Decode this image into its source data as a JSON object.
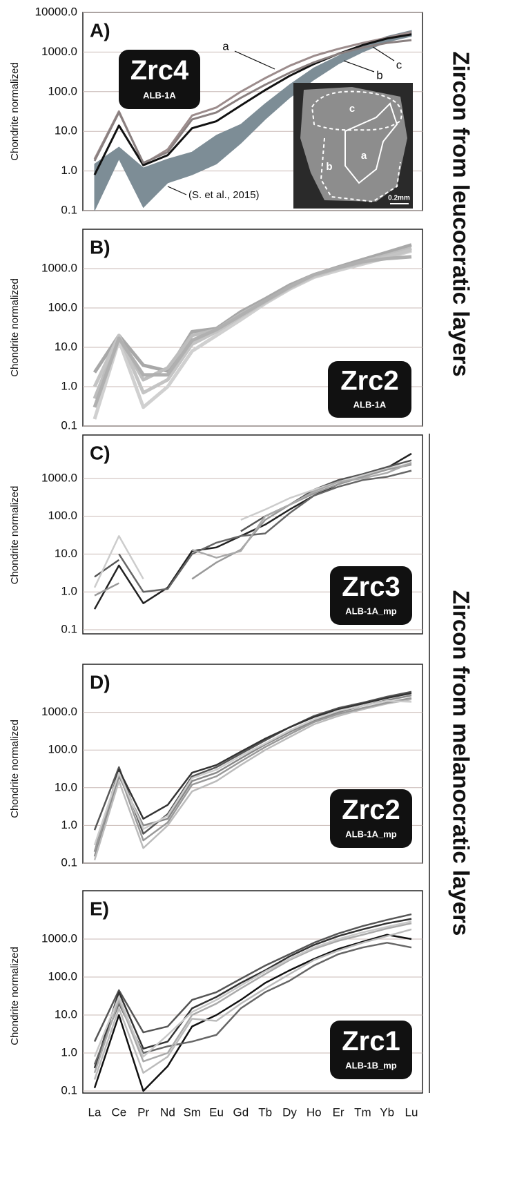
{
  "side_labels": [
    "Zircon from leucocratic layers",
    "Zircon from melanocratic layers"
  ],
  "chart_data": [
    {
      "type": "line",
      "panel_label": "A)",
      "y_label": "Chondrite normalized",
      "legend_title": "Zrc4",
      "legend_subtitle": "ALB-1A",
      "log_scale": true,
      "grid": true,
      "ylim": [
        0.1,
        10000
      ],
      "yticks": [
        0.1,
        {
          "value": 1,
          "label": "1.0"
        },
        {
          "value": 10,
          "label": "10.0"
        },
        {
          "value": 100,
          "label": "100.0"
        },
        {
          "value": 1000,
          "label": "1000.0"
        },
        {
          "value": 10000,
          "label": "10000.0"
        }
      ],
      "band": {
        "label": "(S. et al., 2015)",
        "color": "#7d8d96",
        "low": [
          0.1,
          2,
          0.12,
          0.5,
          0.8,
          1.5,
          5,
          20,
          70,
          200,
          500,
          1000,
          1800,
          2500
        ],
        "high": [
          1.5,
          4,
          1.2,
          2,
          3,
          8,
          15,
          50,
          150,
          400,
          800,
          1500,
          2500,
          3500
        ]
      },
      "series": [
        {
          "name": "a",
          "color": "#9c8c8c",
          "values": [
            2,
            32,
            1.5,
            3.5,
            25,
            40,
            100,
            220,
            450,
            800,
            1200,
            1700,
            2300,
            3200
          ]
        },
        {
          "name": "b",
          "color": "#111111",
          "values": [
            0.8,
            14,
            1.4,
            2.5,
            12,
            18,
            45,
            110,
            250,
            500,
            900,
            1500,
            2200,
            2800
          ]
        },
        {
          "name": "c",
          "color": "#8a8080",
          "values": [
            1.8,
            30,
            1.6,
            3,
            20,
            30,
            70,
            150,
            300,
            550,
            900,
            1300,
            1700,
            2000
          ]
        }
      ],
      "inset": {
        "labels": [
          "c",
          "a",
          "b",
          "0.2mm"
        ]
      }
    },
    {
      "type": "line",
      "panel_label": "B)",
      "y_label": "Chondrite normalized",
      "legend_title": "Zrc2",
      "legend_subtitle": "ALB-1A",
      "log_scale": true,
      "grid": true,
      "ylim": [
        0.1,
        10000
      ],
      "yticks": [
        0.1,
        {
          "value": 1,
          "label": "1.0"
        },
        {
          "value": 10,
          "label": "10.0"
        },
        {
          "value": 100,
          "label": "100.0"
        },
        {
          "value": 1000,
          "label": "1000.0"
        }
      ],
      "series": [
        {
          "color": "#a8a8a8",
          "values": [
            2.3,
            20,
            3.5,
            2.5,
            25,
            30,
            80,
            170,
            380,
            700,
            1100,
            1700,
            2600,
            4000
          ]
        },
        {
          "color": "#bdbdbd",
          "values": [
            0.5,
            18,
            1.5,
            3,
            20,
            28,
            70,
            150,
            330,
            650,
            1000,
            1500,
            2200,
            3300
          ]
        },
        {
          "color": "#d0d0d0",
          "values": [
            0.15,
            15,
            0.3,
            1,
            8,
            20,
            50,
            130,
            300,
            600,
            900,
            1300,
            1900,
            2800
          ]
        },
        {
          "color": "#c4c4c4",
          "values": [
            1,
            20,
            0.7,
            1.5,
            12,
            25,
            60,
            140,
            320,
            640,
            1000,
            1400,
            2000,
            3000
          ]
        },
        {
          "color": "#b0b0b0",
          "values": [
            0.3,
            17,
            2,
            2,
            15,
            28,
            65,
            150,
            340,
            700,
            1050,
            1500,
            1800,
            2000
          ]
        }
      ]
    },
    {
      "type": "line",
      "panel_label": "C)",
      "y_label": "Chondrite normalized",
      "legend_title": "Zrc3",
      "legend_subtitle": "ALB-1A_mp",
      "log_scale": true,
      "grid": true,
      "ylim": [
        0.1,
        10000
      ],
      "yticks": [
        0.1,
        {
          "value": 1,
          "label": "1.0"
        },
        {
          "value": 10,
          "label": "10.0"
        },
        {
          "value": 100,
          "label": "100.0"
        },
        {
          "value": 1000,
          "label": "1000.0"
        }
      ],
      "series": [
        {
          "color": "#222222",
          "values": [
            0.35,
            5,
            0.5,
            1.3,
            12,
            15,
            30,
            60,
            150,
            350,
            700,
            1100,
            1900,
            4500
          ]
        },
        {
          "color": "#555555",
          "values": [
            2.5,
            7,
            null,
            null,
            null,
            null,
            40,
            100,
            200,
            500,
            900,
            1300,
            2000,
            3000
          ]
        },
        {
          "color": "#cccccc",
          "values": [
            1.3,
            30,
            2.2,
            null,
            null,
            null,
            80,
            150,
            300,
            500,
            800,
            1200,
            1800,
            2500
          ]
        },
        {
          "color": "#999999",
          "values": [
            0.8,
            1.7,
            null,
            null,
            2.2,
            6,
            13,
            80,
            200,
            400,
            700,
            1100,
            1700,
            2300
          ]
        },
        {
          "color": "#666666",
          "values": [
            null,
            10,
            1,
            1.2,
            10,
            20,
            30,
            35,
            120,
            350,
            600,
            900,
            1100,
            1600
          ]
        },
        {
          "color": "#aaaaaa",
          "values": [
            null,
            null,
            null,
            null,
            13,
            8,
            12,
            100,
            200,
            450,
            800,
            1000,
            1400,
            2600
          ]
        }
      ]
    },
    {
      "type": "line",
      "panel_label": "D)",
      "y_label": "Chondrite normalized",
      "legend_title": "Zrc2",
      "legend_subtitle": "ALB-1A_mp",
      "log_scale": true,
      "grid": true,
      "ylim": [
        0.1,
        10000
      ],
      "yticks": [
        0.1,
        {
          "value": 1,
          "label": "1.0"
        },
        {
          "value": 10,
          "label": "10.0"
        },
        {
          "value": 100,
          "label": "100.0"
        },
        {
          "value": 1000,
          "label": "1000.0"
        }
      ],
      "series": [
        {
          "color": "#555555",
          "values": [
            0.75,
            35,
            0.6,
            2,
            20,
            35,
            80,
            180,
            400,
            800,
            1300,
            1800,
            2600,
            3500
          ]
        },
        {
          "color": "#333333",
          "values": [
            0.2,
            30,
            1.5,
            3.5,
            25,
            40,
            90,
            200,
            400,
            750,
            1200,
            1700,
            2400,
            3200
          ]
        },
        {
          "color": "#888888",
          "values": [
            0.15,
            20,
            1,
            1.5,
            15,
            25,
            60,
            140,
            300,
            600,
            1000,
            1500,
            2100,
            2800
          ]
        },
        {
          "color": "#bbbbbb",
          "values": [
            0.12,
            15,
            0.25,
            1,
            8,
            15,
            40,
            100,
            220,
            480,
            800,
            1200,
            1700,
            2200
          ]
        },
        {
          "color": "#999999",
          "values": [
            0.2,
            25,
            0.4,
            1.2,
            12,
            20,
            50,
            120,
            260,
            550,
            900,
            1300,
            1800,
            2400
          ]
        },
        {
          "color": "#cccccc",
          "values": [
            0.3,
            25,
            0.8,
            1.8,
            18,
            30,
            70,
            150,
            330,
            650,
            1100,
            1500,
            2000,
            1900
          ]
        }
      ]
    },
    {
      "type": "line",
      "panel_label": "E)",
      "y_label": "Chondrite normalized",
      "legend_title": "Zrc1",
      "legend_subtitle": "ALB-1B_mp",
      "log_scale": true,
      "grid": true,
      "ylim": [
        0.1,
        10000
      ],
      "yticks": [
        0.1,
        {
          "value": 1,
          "label": "1.0"
        },
        {
          "value": 10,
          "label": "10.0"
        },
        {
          "value": 100,
          "label": "100.0"
        },
        {
          "value": 1000,
          "label": "1000.0"
        }
      ],
      "categories": [
        "La",
        "Ce",
        "Pr",
        "Nd",
        "Sm",
        "Eu",
        "Gd",
        "Tb",
        "Dy",
        "Ho",
        "Er",
        "Tm",
        "Yb",
        "Lu"
      ],
      "series": [
        {
          "color": "#555555",
          "values": [
            2,
            45,
            3.5,
            5,
            25,
            40,
            90,
            200,
            400,
            800,
            1400,
            2200,
            3200,
            4500
          ]
        },
        {
          "color": "#333333",
          "values": [
            0.4,
            40,
            1.3,
            2,
            15,
            30,
            70,
            150,
            350,
            700,
            1200,
            1800,
            2600,
            3400
          ]
        },
        {
          "color": "#111111",
          "values": [
            0.12,
            10,
            0.1,
            0.45,
            5,
            10,
            25,
            70,
            150,
            300,
            550,
            850,
            1300,
            1000
          ]
        },
        {
          "color": "#666666",
          "values": [
            0.5,
            20,
            1,
            1.5,
            2,
            3,
            15,
            40,
            80,
            200,
            400,
            600,
            800,
            600
          ]
        },
        {
          "color": "#aaaaaa",
          "values": [
            0.3,
            25,
            0.6,
            1,
            10,
            20,
            50,
            120,
            280,
            550,
            900,
            1300,
            1900,
            2600
          ]
        },
        {
          "color": "#c8c8c8",
          "values": [
            0.8,
            30,
            0.8,
            3,
            12,
            25,
            60,
            140,
            300,
            600,
            1000,
            1500,
            2100,
            2900
          ]
        },
        {
          "color": "#bbbbbb",
          "values": [
            0.2,
            15,
            0.3,
            0.8,
            8,
            7,
            20,
            50,
            120,
            280,
            500,
            800,
            1200,
            1800
          ]
        }
      ]
    }
  ]
}
